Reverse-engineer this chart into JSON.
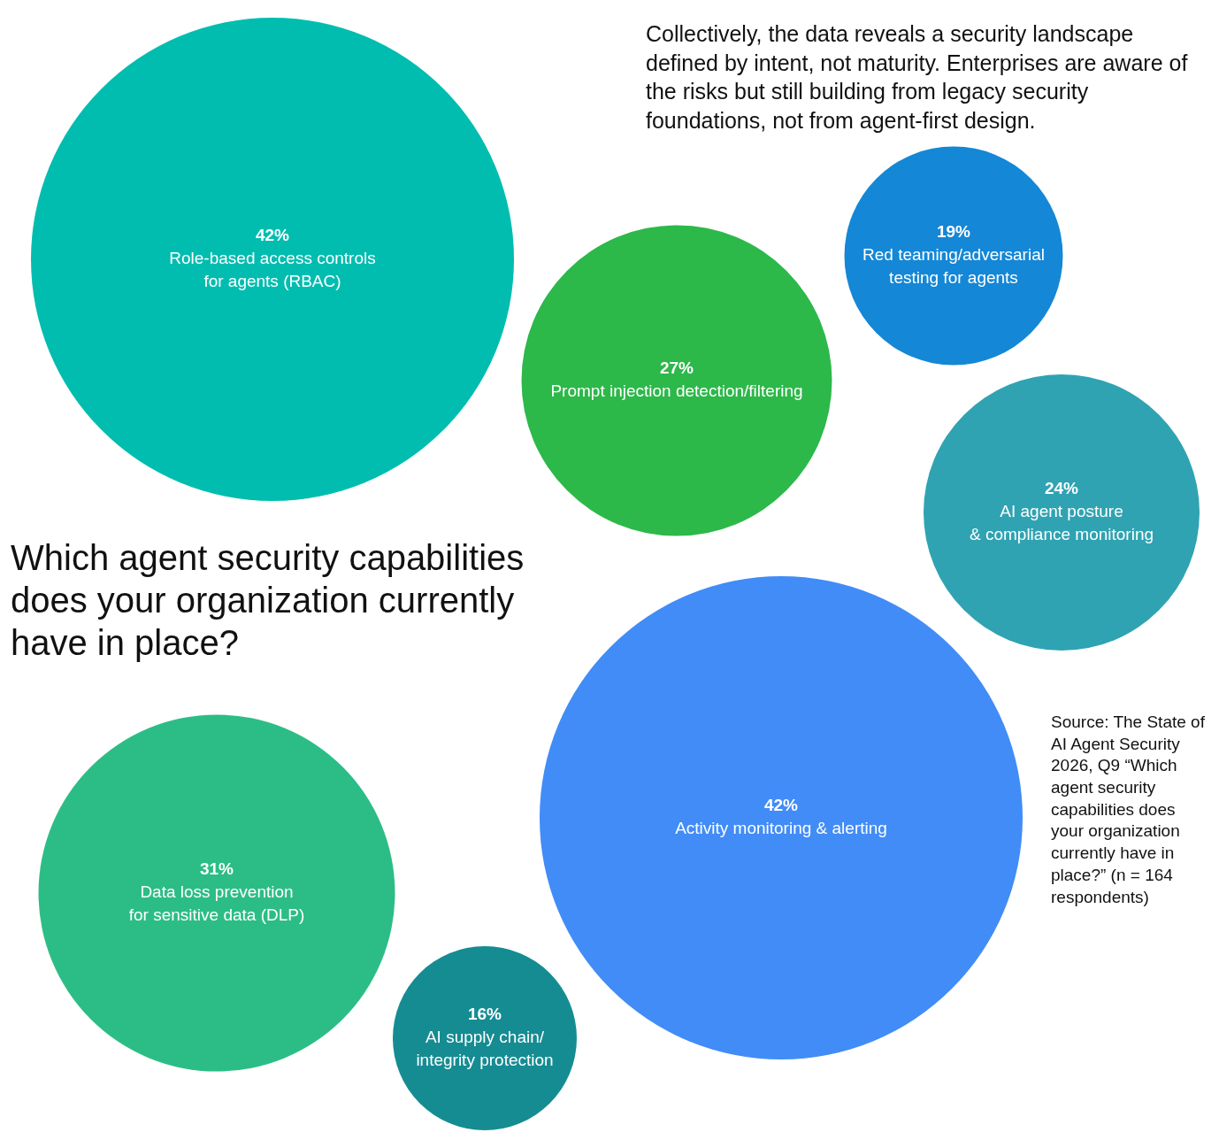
{
  "chart_data": {
    "type": "other",
    "title": "Which agent security capabilities does your organization currently have in place?",
    "categories": [
      "Role-based access controls\nfor agents (RBAC)",
      "Prompt injection detection/filtering",
      "Red teaming/adversarial\ntesting for agents",
      "AI agent posture\n& compliance monitoring",
      "Activity monitoring & alerting",
      "Data loss prevention\nfor sensitive data (DLP)",
      "AI supply chain/\nintegrity protection"
    ],
    "values": [
      42,
      27,
      19,
      24,
      42,
      31,
      16
    ],
    "value_labels": [
      "42%",
      "27%",
      "19%",
      "24%",
      "42%",
      "31%",
      "16%"
    ],
    "colors": [
      "#00bdb0",
      "#2db84a",
      "#1487d6",
      "#2fa3b2",
      "#418cf7",
      "#2cbd86",
      "#158c92"
    ],
    "annotations": [
      "Collectively, the data reveals a security landscape defined by intent, not maturity. Enterprises are aware of the risks but still building from legacy security foundations, not from agent-first design.",
      "Source: The State of AI Agent Security 2026, Q9 “Which agent security capabilities does your organization currently have in place?” (n = 164 respondents)"
    ]
  }
}
